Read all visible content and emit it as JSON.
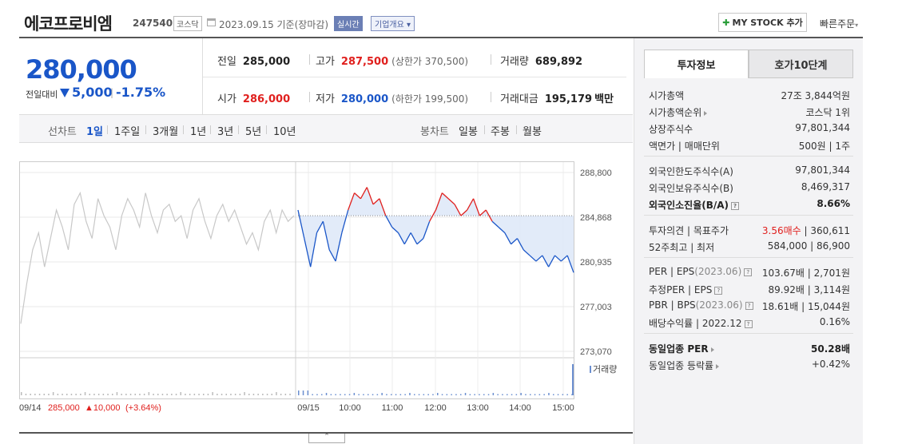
{
  "header": {
    "company_name": "에코프로비엠",
    "stock_code": "247540",
    "market": "코스닥",
    "date_text": "2023.09.15 기준(장마감)",
    "realtime_label": "실시간",
    "company_info_label": "기업개요",
    "mystock_label": "MY STOCK 추가",
    "quick_order_label": "빠른주문"
  },
  "price": {
    "current": "280,000",
    "prev_compare_label": "전일대비",
    "change_amount": "5,000",
    "change_rate": "-1.75%",
    "direction": "down"
  },
  "stats": {
    "prev_close_label": "전일",
    "prev_close": "285,000",
    "high_label": "고가",
    "high": "287,500",
    "upper_limit": "(상한가 370,500)",
    "volume_label": "거래량",
    "volume": "689,892",
    "open_label": "시가",
    "open": "286,000",
    "low_label": "저가",
    "low": "280,000",
    "lower_limit": "(하한가 199,500)",
    "amount_label": "거래대금",
    "amount": "195,179",
    "amount_unit": "백만"
  },
  "chart_tabs": {
    "line_label": "선차트",
    "line_periods": [
      "1일",
      "1주일",
      "3개월",
      "1년",
      "3년",
      "5년",
      "10년"
    ],
    "candle_label": "봉차트",
    "candle_periods": [
      "일봉",
      "주봉",
      "월봉"
    ],
    "active": "1일"
  },
  "chart_data": {
    "type": "line",
    "y_ticks": [
      "288,800",
      "284,868",
      "280,935",
      "277,003",
      "273,070"
    ],
    "y_range": [
      273070,
      288800
    ],
    "baseline": 285000,
    "x_ticks": [
      "09/15",
      "10:00",
      "11:00",
      "12:00",
      "13:00",
      "14:00",
      "15:00"
    ],
    "volume_label": "거래량",
    "prev_day_label": "09/14",
    "prev_day_price": "285,000",
    "prev_day_change": "▲10,000",
    "prev_day_rate": "(+3.64%)",
    "prev_day_series": [
      275500,
      279000,
      282000,
      283500,
      280500,
      283000,
      285500,
      284000,
      282000,
      286000,
      287000,
      284500,
      283000,
      286500,
      285000,
      284000,
      282000,
      285000,
      286500,
      285500,
      284000,
      287000,
      285000,
      283500,
      285500,
      286000,
      284500,
      285000,
      283000,
      285500,
      286500,
      284500,
      283000,
      285000,
      286000,
      284500,
      285500,
      284000,
      282500,
      283500,
      282000,
      284500,
      285500,
      283500,
      285500,
      284500,
      285000
    ],
    "today_series": [
      285500,
      283000,
      280500,
      283500,
      284500,
      282000,
      281000,
      283500,
      285500,
      287000,
      286500,
      287500,
      286000,
      286500,
      285000,
      284000,
      283500,
      282500,
      283500,
      282500,
      283000,
      284500,
      285500,
      287000,
      286500,
      286000,
      285000,
      285500,
      286500,
      285000,
      285500,
      284500,
      284000,
      283500,
      282500,
      283000,
      282000,
      281500,
      281000,
      281500,
      280500,
      281500,
      281000,
      281500,
      280000
    ]
  },
  "invest_info": {
    "tab_active": "투자정보",
    "tab_other": "호가10단계",
    "rows1": [
      {
        "k": "시가총액",
        "v": "27조 3,844억원"
      },
      {
        "k": "시가총액순위",
        "v": "코스닥 1위"
      },
      {
        "k": "상장주식수",
        "v": "97,801,344"
      },
      {
        "k": "액면가 | 매매단위",
        "v": "500원 | 1주"
      }
    ],
    "rows2": [
      {
        "k": "외국인한도주식수(A)",
        "v": "97,801,344"
      },
      {
        "k": "외국인보유주식수(B)",
        "v": "8,469,317"
      },
      {
        "k": "외국인소진율(B/A)",
        "v": "8.66%"
      }
    ],
    "rows3": [
      {
        "k": "투자의견 | 목표주가",
        "v_red": "3.56매수",
        "v": " | 360,611"
      },
      {
        "k": "52주최고 | 최저",
        "v": "584,000 | 86,900"
      }
    ],
    "rows4": [
      {
        "k": "PER | EPS",
        "ks": "(2023.06)",
        "v": "103.67배 | 2,701원"
      },
      {
        "k": "추정PER | EPS",
        "v": "89.92배 | 3,114원"
      },
      {
        "k": "PBR | BPS",
        "ks": "(2023.06)",
        "v": "18.61배 | 15,044원"
      },
      {
        "k": "배당수익률 | 2022.12",
        "v": "0.16%"
      }
    ],
    "rows5": [
      {
        "k": "동일업종 PER",
        "v": "50.28배"
      },
      {
        "k": "동일업종 등락률",
        "v": "+0.42%"
      }
    ]
  },
  "colors": {
    "up": "#e0201e",
    "down": "#1a56c8",
    "prev": "#c8c8c8"
  }
}
